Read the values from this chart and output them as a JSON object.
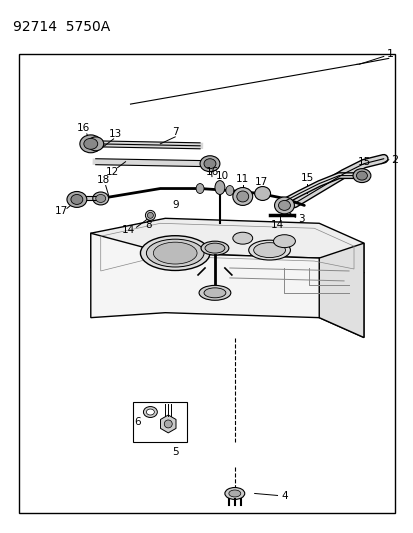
{
  "title": "92714  5750A",
  "bg_color": "#ffffff",
  "line_color": "#000000",
  "text_color": "#000000",
  "fig_width": 4.14,
  "fig_height": 5.33,
  "dpi": 100
}
